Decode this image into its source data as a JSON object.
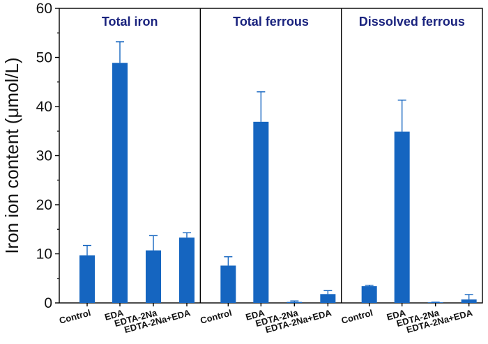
{
  "chart_data": {
    "type": "bar",
    "ylabel": "Iron ion content (μmol/L)",
    "ylim": [
      0,
      60
    ],
    "yticks": [
      0,
      10,
      20,
      30,
      40,
      50,
      60
    ],
    "grid": false,
    "bar_color": "#1565c0",
    "title_color": "#1a237e",
    "categories": [
      "Control",
      "EDA",
      "EDTA-2Na",
      "EDTA-2Na+EDA"
    ],
    "panels": [
      {
        "title": "Total iron",
        "values": [
          9.7,
          48.9,
          10.7,
          13.3
        ],
        "errors": [
          2.0,
          4.3,
          3.0,
          1.0
        ]
      },
      {
        "title": "Total ferrous",
        "values": [
          7.6,
          36.9,
          0.2,
          1.8
        ],
        "errors": [
          1.8,
          6.1,
          0.2,
          0.7
        ]
      },
      {
        "title": "Dissolved ferrous",
        "values": [
          3.4,
          34.9,
          0.1,
          0.7
        ],
        "errors": [
          0.2,
          6.4,
          0.05,
          1.0
        ]
      }
    ]
  }
}
